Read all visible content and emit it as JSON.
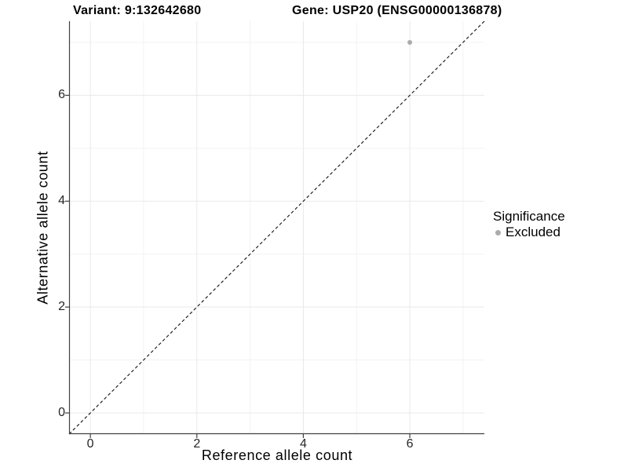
{
  "header": {
    "variant_title": "Variant: 9:132642680",
    "gene_title": "Gene: USP20 (ENSG00000136878)"
  },
  "chart_data": {
    "type": "scatter",
    "title": "Variant: 9:132642680   Gene: USP20 (ENSG00000136878)",
    "xlabel": "Reference allele count",
    "ylabel": "Alternative allele count",
    "xlim": [
      -0.4,
      7.4
    ],
    "ylim": [
      -0.4,
      7.4
    ],
    "x_ticks": [
      0,
      2,
      4,
      6
    ],
    "y_ticks": [
      0,
      2,
      4,
      6
    ],
    "x_minor": [
      1,
      3,
      5,
      7
    ],
    "y_minor": [
      1,
      3,
      5,
      7
    ],
    "grid": "major and minor gridlines, light gray on white panel",
    "series": [
      {
        "name": "Excluded",
        "color": "#ababab",
        "points": [
          [
            6,
            7
          ]
        ]
      }
    ],
    "reference_line": {
      "kind": "identity y=x",
      "style": "dashed",
      "color": "#111111"
    },
    "legend": {
      "title": "Significance",
      "position": "right",
      "items": [
        {
          "label": "Excluded",
          "color": "#ababab"
        }
      ]
    }
  },
  "style": {
    "background": "#ffffff",
    "grid_major": "#e9e9e9",
    "grid_minor": "#f3f3f3",
    "axis_line": "#404040",
    "tick_text": "#262626",
    "ref_line": "#111111",
    "point_radius": 3
  }
}
